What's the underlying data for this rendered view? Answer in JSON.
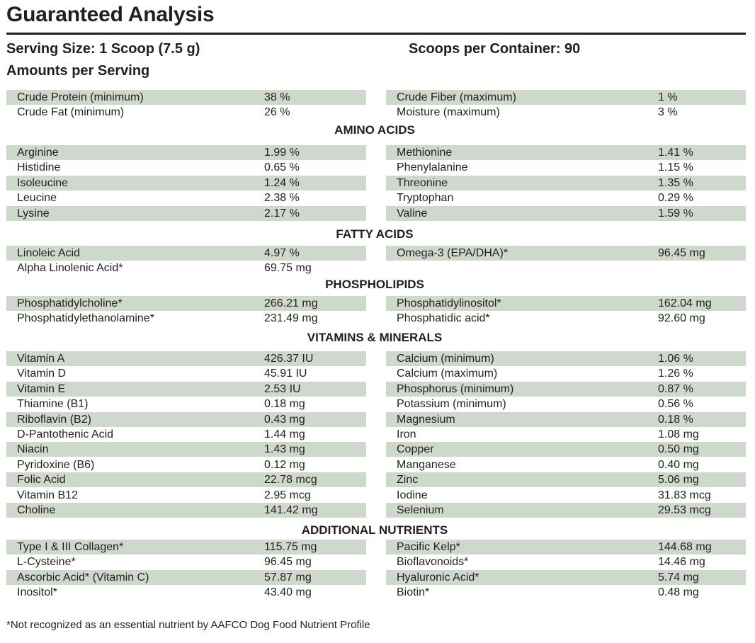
{
  "header": {
    "title": "Guaranteed Analysis",
    "serving_size": "Serving Size: 1 Scoop (7.5 g)",
    "scoops_per_container": "Scoops per Container: 90",
    "amounts_per_serving": "Amounts per Serving"
  },
  "sections": [
    {
      "heading": "",
      "left": [
        {
          "name": "Crude Protein (minimum)",
          "value": "38 %"
        },
        {
          "name": "Crude Fat (minimum)",
          "value": "26 %"
        }
      ],
      "right": [
        {
          "name": "Crude Fiber (maximum)",
          "value": "1 %"
        },
        {
          "name": "Moisture (maximum)",
          "value": "3 %"
        }
      ]
    },
    {
      "heading": "AMINO ACIDS",
      "left": [
        {
          "name": "Arginine",
          "value": "1.99 %"
        },
        {
          "name": "Histidine",
          "value": "0.65 %"
        },
        {
          "name": "Isoleucine",
          "value": "1.24 %"
        },
        {
          "name": "Leucine",
          "value": "2.38 %"
        },
        {
          "name": "Lysine",
          "value": "2.17 %"
        }
      ],
      "right": [
        {
          "name": "Methionine",
          "value": "1.41 %"
        },
        {
          "name": "Phenylalanine",
          "value": "1.15 %"
        },
        {
          "name": "Threonine",
          "value": "1.35 %"
        },
        {
          "name": "Tryptophan",
          "value": "0.29 %"
        },
        {
          "name": "Valine",
          "value": "1.59 %"
        }
      ]
    },
    {
      "heading": "FATTY ACIDS",
      "left": [
        {
          "name": "Linoleic Acid",
          "value": "4.97 %"
        },
        {
          "name": "Alpha Linolenic Acid*",
          "value": "69.75 mg"
        }
      ],
      "right": [
        {
          "name": "Omega-3 (EPA/DHA)*",
          "value": "96.45 mg"
        }
      ]
    },
    {
      "heading": "PHOSPHOLIPIDS",
      "left": [
        {
          "name": "Phosphatidylcholine*",
          "value": "266.21 mg"
        },
        {
          "name": "Phosphatidylethanolamine*",
          "value": "231.49 mg"
        }
      ],
      "right": [
        {
          "name": "Phosphatidylinositol*",
          "value": "162.04 mg"
        },
        {
          "name": "Phosphatidic acid*",
          "value": "92.60 mg"
        }
      ]
    },
    {
      "heading": "VITAMINS & MINERALS",
      "left": [
        {
          "name": "Vitamin A",
          "value": "426.37 IU"
        },
        {
          "name": "Vitamin D",
          "value": "45.91 IU"
        },
        {
          "name": "Vitamin E",
          "value": "2.53 IU"
        },
        {
          "name": "Thiamine (B1)",
          "value": "0.18 mg"
        },
        {
          "name": "Riboflavin (B2)",
          "value": "0.43 mg"
        },
        {
          "name": "D-Pantothenic Acid",
          "value": "1.44 mg"
        },
        {
          "name": "Niacin",
          "value": "1.43 mg"
        },
        {
          "name": "Pyridoxine (B6)",
          "value": "0.12 mg"
        },
        {
          "name": "Folic Acid",
          "value": "22.78 mcg"
        },
        {
          "name": "Vitamin B12",
          "value": "2.95 mcg"
        },
        {
          "name": "Choline",
          "value": "141.42 mg"
        }
      ],
      "right": [
        {
          "name": "Calcium (minimum)",
          "value": "1.06 %"
        },
        {
          "name": "Calcium (maximum)",
          "value": "1.26 %"
        },
        {
          "name": "Phosphorus (minimum)",
          "value": "0.87 %"
        },
        {
          "name": "Potassium (minimum)",
          "value": "0.56 %"
        },
        {
          "name": "Magnesium",
          "value": "0.18 %"
        },
        {
          "name": "Iron",
          "value": "1.08 mg"
        },
        {
          "name": "Copper",
          "value": "0.50 mg"
        },
        {
          "name": "Manganese",
          "value": "0.40 mg"
        },
        {
          "name": "Zinc",
          "value": "5.06 mg"
        },
        {
          "name": "Iodine",
          "value": "31.83 mcg"
        },
        {
          "name": "Selenium",
          "value": "29.53 mcg"
        }
      ]
    },
    {
      "heading": "ADDITIONAL NUTRIENTS",
      "left": [
        {
          "name": "Type I & III Collagen*",
          "value": "115.75 mg"
        },
        {
          "name": "L-Cysteine*",
          "value": "96.45 mg"
        },
        {
          "name": "Ascorbic Acid* (Vitamin C)",
          "value": "57.87 mg"
        },
        {
          "name": "Inositol*",
          "value": "43.40 mg"
        }
      ],
      "right": [
        {
          "name": "Pacific Kelp*",
          "value": "144.68 mg"
        },
        {
          "name": "Bioflavonoids*",
          "value": "14.46 mg"
        },
        {
          "name": "Hyaluronic Acid*",
          "value": "5.74 mg"
        },
        {
          "name": "Biotin*",
          "value": "0.48 mg"
        }
      ]
    }
  ],
  "footnote": "*Not recognized as an essential nutrient by AAFCO Dog Food Nutrient Profile",
  "colors": {
    "row_shade": "#cfd8cc",
    "text": "#231f20"
  }
}
